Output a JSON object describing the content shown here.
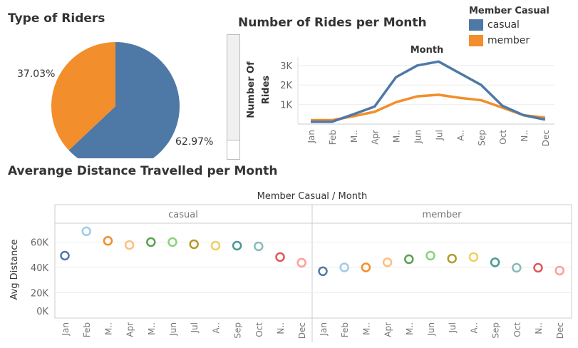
{
  "titles": {
    "pie": "Type of Riders",
    "line": "Number of Rides per Month",
    "scatter": "Averange Distance Travelled per Month"
  },
  "legend": {
    "title": "Member Casual",
    "items": [
      {
        "label": "casual",
        "color": "#4e79a7"
      },
      {
        "label": "member",
        "color": "#f28e2b"
      }
    ]
  },
  "chart_data": [
    {
      "type": "pie",
      "title": "Type of Riders",
      "slices": [
        {
          "label": "casual",
          "value": 62.97,
          "display": "62.97%",
          "color": "#4e79a7"
        },
        {
          "label": "member",
          "value": 37.03,
          "display": "37.03%",
          "color": "#f28e2b"
        }
      ]
    },
    {
      "type": "line",
      "title": "Number of Rides per Month",
      "xlabel": "Month",
      "ylabel": "Number Of Rides",
      "categories": [
        "Jan",
        "Feb",
        "M..",
        "Apr",
        "M..",
        "Jun",
        "Jul",
        "A..",
        "Sep",
        "Oct",
        "N..",
        "Dec"
      ],
      "yticks": [
        "1K",
        "2K",
        "3K"
      ],
      "ylim": [
        0,
        3300
      ],
      "grid": true,
      "series": [
        {
          "name": "casual",
          "color": "#4e79a7",
          "values": [
            120,
            120,
            500,
            900,
            2400,
            3000,
            3200,
            2600,
            2000,
            930,
            450,
            230
          ]
        },
        {
          "name": "member",
          "color": "#f28e2b",
          "values": [
            200,
            200,
            400,
            630,
            1120,
            1420,
            1500,
            1340,
            1220,
            840,
            450,
            330
          ]
        }
      ]
    },
    {
      "type": "scatter",
      "title": "Averange Distance Travelled per Month",
      "xlabel": "Member Casual  /  Month",
      "ylabel": "Avg Distance",
      "yticks": [
        "0K",
        "20K",
        "40K",
        "60K"
      ],
      "ylim": [
        0,
        75000
      ],
      "grid": true,
      "categories": [
        "Jan",
        "Feb",
        "M..",
        "Apr",
        "M..",
        "Jun",
        "Jul",
        "A..",
        "Sep",
        "Oct",
        "N..",
        "Dec"
      ],
      "month_colors": [
        "#4e79a7",
        "#a0cbe8",
        "#f28e2b",
        "#ffbe7d",
        "#59a14f",
        "#8cd17d",
        "#b6992d",
        "#f1ce63",
        "#499894",
        "#86bcb6",
        "#e15759",
        "#ff9d9a"
      ],
      "panes": [
        {
          "name": "casual",
          "values": [
            49300,
            68500,
            61000,
            57700,
            60000,
            60000,
            58300,
            57200,
            57200,
            56600,
            48200,
            43700
          ]
        },
        {
          "name": "member",
          "values": [
            37000,
            40000,
            40000,
            44000,
            46500,
            49300,
            47000,
            48200,
            44000,
            39700,
            39700,
            37500
          ]
        }
      ]
    }
  ]
}
